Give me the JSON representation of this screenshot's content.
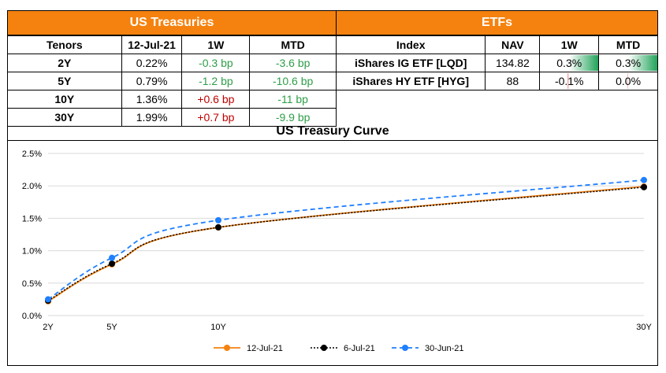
{
  "treasuries": {
    "title": "US Treasuries",
    "headers": [
      "Tenors",
      "12-Jul-21",
      "1W",
      "MTD"
    ],
    "rows": [
      {
        "tenor": "2Y",
        "yield": "0.22%",
        "w1": "-0.3 bp",
        "mtd": "-3.6 bp"
      },
      {
        "tenor": "5Y",
        "yield": "0.79%",
        "w1": "-1.2 bp",
        "mtd": "-10.6 bp"
      },
      {
        "tenor": "10Y",
        "yield": "1.36%",
        "w1": "+0.6 bp",
        "mtd": "-11 bp"
      },
      {
        "tenor": "30Y",
        "yield": "1.99%",
        "w1": "+0.7 bp",
        "mtd": "-9.9 bp"
      }
    ]
  },
  "etfs": {
    "title": "ETFs",
    "headers": [
      "Index",
      "NAV",
      "1W",
      "MTD"
    ],
    "rows": [
      {
        "name": "iShares IG ETF [LQD]",
        "nav": "134.82",
        "w1": "0.3%",
        "mtd": "0.3%",
        "w1_value": 0.3,
        "mtd_value": 0.3
      },
      {
        "name": "iShares HY ETF [HYG]",
        "nav": "88",
        "w1": "-0.1%",
        "mtd": "0.0%",
        "w1_value": -0.1,
        "mtd_value": -0.04
      }
    ]
  },
  "colors": {
    "header": "#f5820f",
    "positive_change": "#c00000",
    "negative_change": "#2e9e48",
    "series1": "#f5820f",
    "series2": "#000000",
    "series3": "#1f7fff"
  },
  "chart_data": {
    "type": "line",
    "title": "US Treasury Curve",
    "x": [
      2,
      5,
      10,
      30
    ],
    "x_tick_labels": [
      "2Y",
      "5Y",
      "10Y",
      "30Y"
    ],
    "ylim": [
      0,
      2.5
    ],
    "y_ticks": [
      0,
      0.5,
      1.0,
      1.5,
      2.0,
      2.5
    ],
    "y_tick_labels": [
      "0.0%",
      "0.5%",
      "1.0%",
      "1.5%",
      "2.0%",
      "2.5%"
    ],
    "grid": true,
    "legend": "bottom",
    "series": [
      {
        "name": "12-Jul-21",
        "values": [
          0.22,
          0.79,
          1.36,
          1.99
        ]
      },
      {
        "name": "6-Jul-21",
        "values": [
          0.23,
          0.8,
          1.36,
          1.98
        ]
      },
      {
        "name": "30-Jun-21",
        "values": [
          0.25,
          0.89,
          1.47,
          2.09
        ]
      }
    ]
  }
}
